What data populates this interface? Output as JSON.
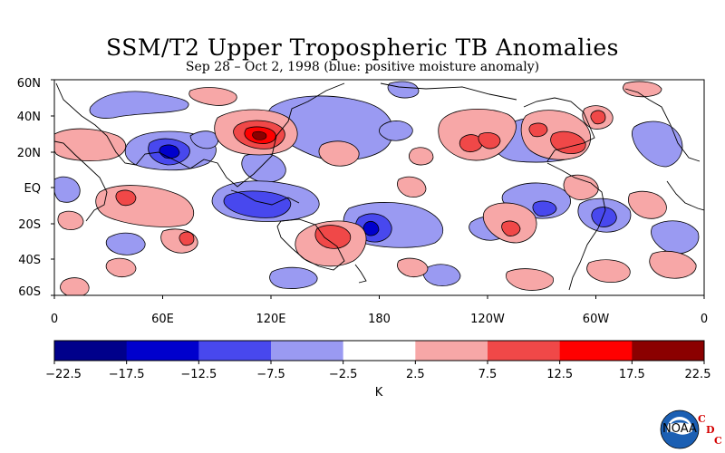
{
  "title": "SSM/T2 Upper Tropospheric TB Anomalies",
  "subtitle": "Sep 28 – Oct 2, 1998 (blue: positive moisture anomaly)",
  "map": {
    "lat_labels": [
      "60N",
      "40N",
      "20N",
      "EQ",
      "20S",
      "40S",
      "60S"
    ],
    "lon_labels": [
      "0",
      "60E",
      "120E",
      "180",
      "120W",
      "60W",
      "0"
    ]
  },
  "colorbar": {
    "unit": "K",
    "ticks": [
      "−22.5",
      "−17.5",
      "−12.5",
      "−7.5",
      "−2.5",
      "2.5",
      "7.5",
      "12.5",
      "17.5",
      "22.5"
    ],
    "colors": [
      "#00008b",
      "#0000cd",
      "#4848ee",
      "#9a9af2",
      "#ffffff",
      "#f7a7a7",
      "#f04848",
      "#ff0000",
      "#8b0000"
    ]
  },
  "logo": {
    "org_letters": [
      "C",
      "D",
      "C"
    ],
    "emblem_text": "NOAA"
  },
  "palette": {
    "pos_light": "#f7a7a7",
    "pos_mid": "#f04848",
    "pos_strong": "#ff0000",
    "neg_light": "#9a9af2",
    "neg_mid": "#4848ee",
    "neg_strong": "#0000cd"
  }
}
